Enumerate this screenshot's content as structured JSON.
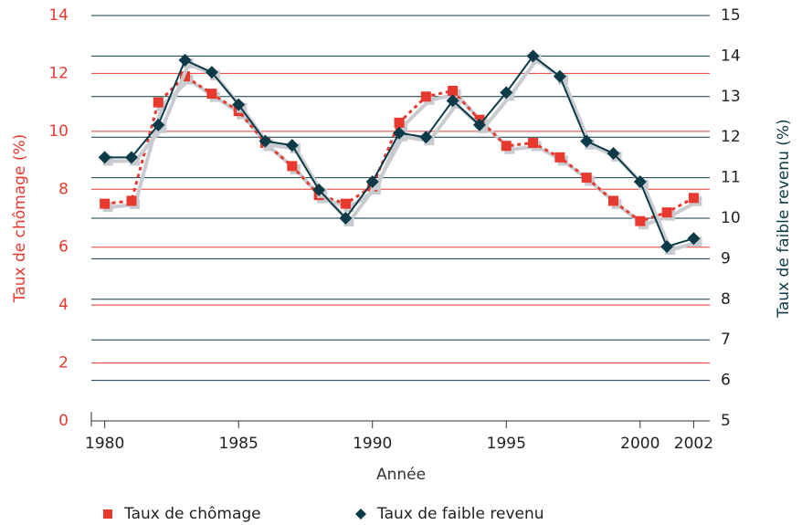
{
  "chart_data": {
    "type": "line",
    "x": [
      1980,
      1981,
      1982,
      1983,
      1984,
      1985,
      1986,
      1987,
      1988,
      1989,
      1990,
      1991,
      1992,
      1993,
      1994,
      1995,
      1996,
      1997,
      1998,
      1999,
      2000,
      2001,
      2002
    ],
    "series": [
      {
        "name": "Taux de chômage",
        "color": "#e8392f",
        "axis": "y",
        "values": [
          7.5,
          7.6,
          11.0,
          11.9,
          11.3,
          10.7,
          9.6,
          8.8,
          7.8,
          7.5,
          8.1,
          10.3,
          11.2,
          11.4,
          10.4,
          9.5,
          9.6,
          9.1,
          8.4,
          7.6,
          6.9,
          7.2,
          7.7
        ]
      },
      {
        "name": "Taux de faible revenu",
        "color": "#0d3a47",
        "axis": "y2",
        "values": [
          11.5,
          11.5,
          12.3,
          13.9,
          13.6,
          12.8,
          11.9,
          11.8,
          10.7,
          10.0,
          10.9,
          12.1,
          12.0,
          12.9,
          12.3,
          13.1,
          14.0,
          13.5,
          11.9,
          11.6,
          10.9,
          9.3,
          9.5
        ]
      }
    ],
    "xlabel": "Année",
    "ylabel": "Taux de chômage (%)",
    "y2label": "Taux de faible revenu (%)",
    "xlim": [
      1979.5,
      2002.6
    ],
    "xticks": [
      1980,
      1985,
      1990,
      1995,
      2000,
      2002
    ],
    "ylim": [
      0,
      14
    ],
    "yticks": [
      0,
      2,
      4,
      6,
      8,
      10,
      12,
      14
    ],
    "y2lim": [
      5,
      15
    ],
    "y2ticks": [
      5,
      6,
      7,
      8,
      9,
      10,
      11,
      12,
      13,
      14,
      15
    ],
    "grid": true,
    "legend": "bottom"
  }
}
